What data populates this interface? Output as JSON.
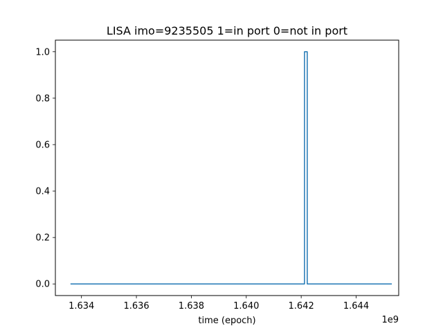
{
  "chart_data": {
    "type": "line",
    "title": "LISA imo=9235505 1=in port 0=not in port",
    "xlabel": "time (epoch)",
    "ylabel": "",
    "x_offset_label": "1e9",
    "xlim": [
      1.63305,
      1.64555
    ],
    "ylim": [
      -0.05,
      1.05
    ],
    "x_ticks": [
      1.634,
      1.636,
      1.638,
      1.64,
      1.642,
      1.644
    ],
    "x_tick_labels": [
      "1.634",
      "1.636",
      "1.638",
      "1.640",
      "1.642",
      "1.644"
    ],
    "y_ticks": [
      0.0,
      0.2,
      0.4,
      0.6,
      0.8,
      1.0
    ],
    "y_tick_labels": [
      "0.0",
      "0.2",
      "0.4",
      "0.6",
      "0.8",
      "1.0"
    ],
    "grid": false,
    "legend": "none",
    "series": [
      {
        "color": "#1f77b4",
        "x": [
          1.6336,
          1.64212,
          1.64212,
          1.64222,
          1.64222,
          1.6453
        ],
        "y": [
          0,
          0,
          1,
          1,
          0,
          0
        ]
      }
    ]
  }
}
